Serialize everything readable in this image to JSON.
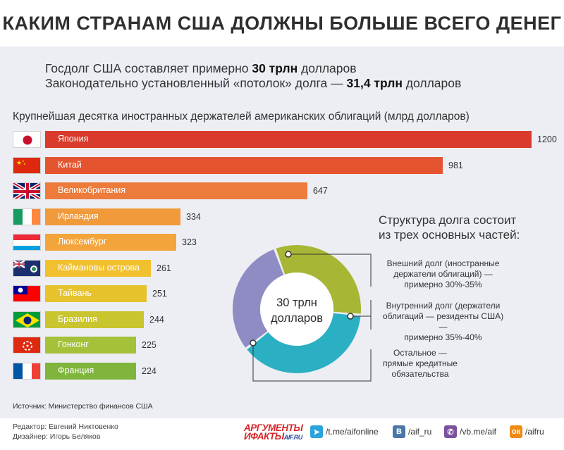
{
  "title": "КАКИМ СТРАНАМ США ДОЛЖНЫ БОЛЬШЕ ВСЕГО ДЕНЕГ",
  "intro": {
    "line1_pre": "Госдолг США составляет примерно ",
    "line1_bold": "30 трлн",
    "line1_post": " долларов",
    "line2_pre": "Законодательно установленный «потолок» долга — ",
    "line2_bold": "31,4 трлн",
    "line2_post": " долларов"
  },
  "chart_data": [
    {
      "type": "bar",
      "orientation": "horizontal",
      "title": "Крупнейшая десятка иностранных держателей американских облигаций (млрд долларов)",
      "categories": [
        "Япония",
        "Китай",
        "Великобритания",
        "Ирландия",
        "Люксембург",
        "Каймановы острова",
        "Тайвань",
        "Бразилия",
        "Гонконг",
        "Франция"
      ],
      "values": [
        1200,
        981,
        647,
        334,
        323,
        261,
        251,
        244,
        225,
        224
      ],
      "value_labels": [
        "1200",
        "981",
        "647",
        "334",
        "323",
        "261",
        "251",
        "244",
        "225",
        "224"
      ],
      "colors": [
        "#d93a2b",
        "#e4552f",
        "#ec7b3c",
        "#f09a3c",
        "#f3a43b",
        "#f1c02f",
        "#e6c22d",
        "#c9c52f",
        "#a5c139",
        "#7fb53c"
      ],
      "flags": [
        "japan-flag",
        "china-flag",
        "uk-flag",
        "ireland-flag",
        "luxembourg-flag",
        "cayman-flag",
        "taiwan-flag",
        "brazil-flag",
        "hongkong-flag",
        "france-flag"
      ],
      "xlim": [
        0,
        1200
      ]
    },
    {
      "type": "pie",
      "donut": true,
      "title": "Структура долга состоит из трех основных частей:",
      "center_label": [
        "30 трлн",
        "долларов"
      ],
      "series": [
        {
          "name": "Внешний долг (иностранные держатели облигаций) — примерно 30%-35%",
          "value": 32,
          "color": "#a7b634"
        },
        {
          "name": "Внутренний долг (держатели облигаций — резиденты США) — примерно 35%-40%",
          "value": 38,
          "color": "#2bb0c3"
        },
        {
          "name": "Остальное — прямые кредитные обязательства",
          "value": 30,
          "color": "#8f8cc4"
        }
      ]
    }
  ],
  "donut_title": [
    "Структура долга состоит",
    "из трех основных частей:"
  ],
  "legend": [
    [
      "Внешний долг (иностранные",
      "держатели облигаций) —",
      "примерно 30%-35%"
    ],
    [
      "Внутренний долг (держатели",
      "облигаций — резиденты США) —",
      "примерно 35%-40%"
    ],
    [
      "Остальное —",
      "прямые кредитные",
      "обязательства"
    ]
  ],
  "source": "Источник: Министерство финансов США",
  "credits": {
    "editor": "Редактор: Евгений Никтовенко",
    "designer": "Дизайнер: Игорь Беляков"
  },
  "brand": {
    "top": "АРГУМЕНТЫ",
    "bottom": "ИФАКТЫ",
    "domain": "AIF.RU"
  },
  "social": [
    {
      "icon": "telegram-icon",
      "label": "/t.me/aifonline",
      "color": "#2aa3dc"
    },
    {
      "icon": "vk-icon",
      "label": "/aif_ru",
      "color": "#4a76a8"
    },
    {
      "icon": "viber-icon",
      "label": "/vb.me/aif",
      "color": "#7b519d"
    },
    {
      "icon": "ok-icon",
      "label": "/aifru",
      "color": "#f28a16"
    }
  ]
}
